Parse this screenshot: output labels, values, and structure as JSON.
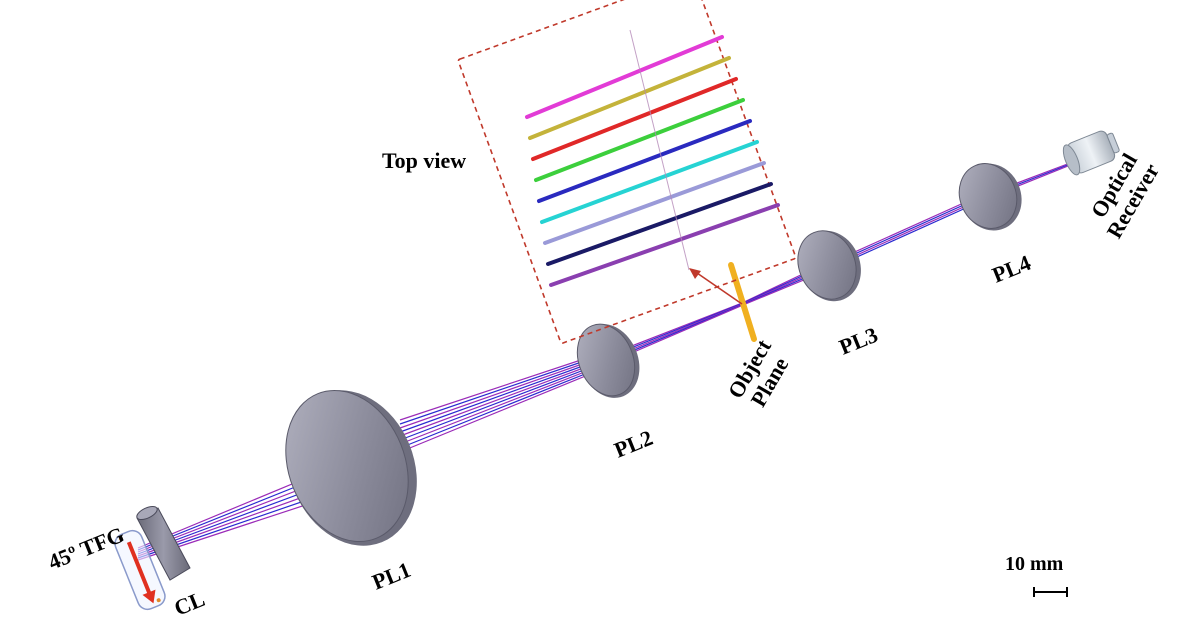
{
  "labels": {
    "top_view": "Top view",
    "tfg": "45º TFG",
    "cl": "CL",
    "pl1": "PL1",
    "pl2": "PL2",
    "pl3": "PL3",
    "pl4": "PL4",
    "object_line1": "Object",
    "object_line2": "Plane",
    "receiver_line1": "Optical",
    "receiver_line2": "Receiver",
    "scale": "10 mm"
  },
  "colors": {
    "lens_fill": "#8f8f9f",
    "lens_edge": "#5a5a6a",
    "beam_primary": "#9a2bb8",
    "beam_secondary": "#2a2ad0",
    "object_plane": "#f0b020",
    "inset_border": "#c0392b",
    "arrow": "#c0392b",
    "tfg_arrow": "#e03020"
  },
  "top_view_lines": [
    {
      "color": "#e23bd6"
    },
    {
      "color": "#c4b33a"
    },
    {
      "color": "#e02828"
    },
    {
      "color": "#3ccf3c"
    },
    {
      "color": "#2a2abf"
    },
    {
      "color": "#26d3d3"
    },
    {
      "color": "#9a9ad8"
    },
    {
      "color": "#1a1a66"
    },
    {
      "color": "#8a3fb0"
    }
  ]
}
